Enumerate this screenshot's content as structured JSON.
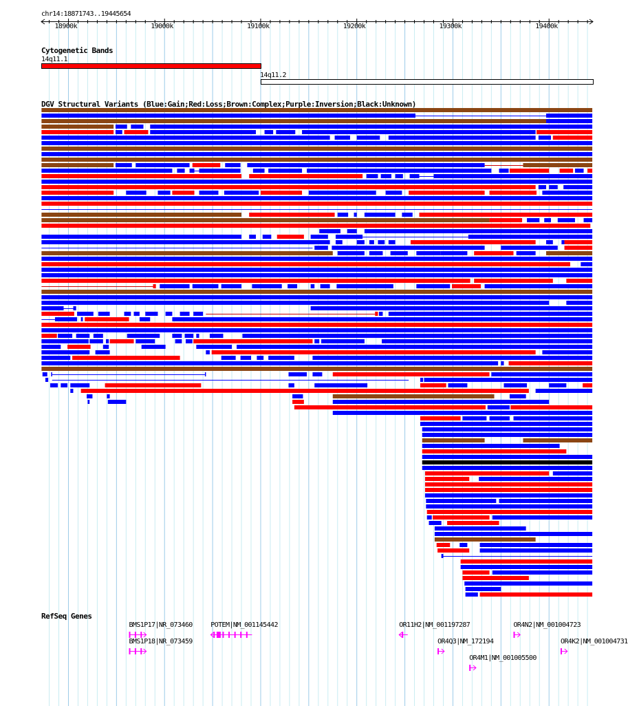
{
  "ruler": {
    "location": "chr14:18871743..19445654",
    "view_start_kb": 18871.743,
    "view_end_kb": 19445.654,
    "ticks_kb": [
      18900,
      19000,
      19100,
      19200,
      19300,
      19400
    ],
    "tick_labels": [
      "18900k",
      "19000k",
      "19100k",
      "19200k",
      "19300k",
      "19400k"
    ]
  },
  "cyto": {
    "title": "Cytogenetic Bands",
    "bands": [
      {
        "name": "14q11.1",
        "start": 18871.743,
        "end": 19100,
        "color": "#ff0000"
      },
      {
        "name": "14q11.2",
        "start": 19100,
        "end": 19445.654,
        "color": "#ffffff"
      }
    ]
  },
  "dgv": {
    "title": "DGV Structural Variants (Blue:Gain;Red:Loss;Brown:Complex;Purple:Inversion;Black:Unknown)",
    "colors": {
      "b": "#0000ff",
      "r": "#ff0000",
      "n": "#8b4513",
      "k": "#000000",
      "l": "#0000ff",
      "lr": "#cc0000"
    },
    "rows": [
      [
        "18872-19445:n"
      ],
      [
        "18872-19261:b",
        "19261-19397:l",
        "19397-19445:b"
      ],
      [
        "18872-19397:n",
        "19397-19445:b"
      ],
      [
        "18872-18947:n",
        "18949-18961:b",
        "18965-18978:b",
        "18985-19445:b"
      ],
      [
        "18872-18947:r",
        "18949-18956:b",
        "18958-18983:r",
        "18985-19095:b",
        "19104-19113:b",
        "19116-19136:b",
        "19143-19386:b",
        "19387-19445:r"
      ],
      [
        "18872-19172:b",
        "19177-19193:b",
        "19200-19224:b",
        "19233-19386:b",
        "19389-19402:b",
        "19404-19445:r"
      ],
      [
        "18872-19445:b"
      ],
      [
        "18872-19445:n"
      ],
      [
        "18872-19445:b"
      ],
      [
        "18872-19445:n"
      ],
      [
        "18872-18947:n",
        "18949-18966:b",
        "18970-19026:b",
        "19029-19058:r",
        "19063-19079:b",
        "19086-19333:b",
        "19333-19373:lr",
        "19373-19445:n"
      ],
      [
        "18872-19008:b",
        "19013-19021:b",
        "19026-19031:b",
        "19031-19036:l",
        "19036-19079:b",
        "19092-19104:b",
        "19108-19143:b",
        "19148-19340:b",
        "19348-19358:b",
        "19359-19400:r",
        "19411-19425:r",
        "19427-19436:b",
        "19440-19445:r"
      ],
      [
        "18872-19080:r",
        "19088-19206:r",
        "19210-19222:b",
        "19225-19236:b",
        "19240-19248:b",
        "19255-19265:b",
        "19265-19280:l",
        "19280-19445:b"
      ],
      [
        "18872-19445:b"
      ],
      [
        "18872-19386:r",
        "19389-19397:b",
        "19400-19409:b",
        "19415-19445:b"
      ],
      [
        "18872-18947:r",
        "18960-18981:b",
        "18993-19006:b",
        "19008-19031:r",
        "19036-19056:b",
        "19062-19098:b",
        "19100-19143:r",
        "19150-19220:b",
        "19230-19247:b",
        "19254-19333:r",
        "19338-19387:r",
        "19393-19445:b"
      ],
      [
        "18872-19445:b"
      ],
      [
        "18872-19445:r"
      ],
      [
        "18872-19445:l"
      ],
      [
        "18872-19080:n",
        "19088-19177:r",
        "19180-19191:b",
        "19197-19200:b",
        "19208-19240:b",
        "19247-19258:b",
        "19265-19445:r"
      ],
      [
        "18872-19338:n",
        "19338-19372:r",
        "19377-19390:b",
        "19395-19402:b",
        "19409-19427:b",
        "19436-19445:b"
      ],
      [
        "18872-19443:r"
      ],
      [
        "19161-19183:b",
        "19190-19200:b",
        "19208-19445:b"
      ],
      [
        "18872-19080:b",
        "19088-19095:b",
        "19102-19111:b",
        "19117-19145:r",
        "19152-19170:b",
        "19178-19206:b",
        "19206-19316:l",
        "19316-19445:b"
      ],
      [
        "18872-19172:b",
        "19178-19185:b",
        "19200-19208:b",
        "19213-19218:b",
        "19222-19229:b",
        "19233-19240:b",
        "19256-19386:r",
        "19397-19404:b",
        "19413-19416:b",
        "19416-19445:r"
      ],
      [
        "18872-19154:l",
        "19156-19170:b",
        "19174-19333:b",
        "19350-19409:b",
        "19416-19445:r"
      ],
      [
        "18872-19175:n",
        "19180-19208:b",
        "19213-19227:b",
        "19235-19253:b",
        "19262-19287:b",
        "19287-19315:b",
        "19322-19363:r",
        "19366-19386:b",
        "19397-19445:n"
      ],
      [
        "18872-19445:b"
      ],
      [
        "18872-19422:r",
        "19433-19445:b"
      ],
      [
        "18872-19445:b"
      ],
      [
        "18872-19445:b"
      ],
      [
        "18872-19318:r",
        "19322-19404:r",
        "19418-19445:r"
      ],
      [
        "18872-18988:lr",
        "18988-18991:r",
        "18995-19026:b",
        "19029-19056:b",
        "19059-19080:b",
        "19091-19122:b",
        "19128-19138:b",
        "19152-19156:b",
        "19162-19172:b",
        "19179-19238:b",
        "19262-19297:b",
        "19299-19329:r",
        "19333-19445:b"
      ],
      [
        "18872-19445:n"
      ],
      [
        "18872-19445:b"
      ],
      [
        "18872-19400:b",
        "19418-19445:b"
      ],
      [
        "18872-18895:b",
        "18895-18905:l",
        "18905-18908:b",
        "19152-19445:b"
      ],
      [
        "18872-18906:r",
        "18909-18926:b",
        "18931-18943:b",
        "18958-18965:b",
        "18968-18974:b",
        "18980-18993:b",
        "19001-19008:b",
        "19016-19026:b",
        "19030-19040:b",
        "19043-19219:lr",
        "19219-19222:r",
        "19223-19227:b",
        "19233-19445:b"
      ],
      [
        "18872-18886:l",
        "18886-18909:b",
        "18913-18915:b",
        "18917-18963:r",
        "18974-18985:b",
        "19008-19445:b"
      ],
      [
        "18872-19445:r"
      ],
      [
        "18872-19445:b"
      ],
      [
        "18872-18888:r",
        "18889-18904:b",
        "18908-18922:b",
        "18926-18936:b",
        "18961-18995:b",
        "19008-19018:b",
        "19021-19030:b",
        "19033-19036:b",
        "19047-19061:b",
        "19081-19445:b"
      ],
      [
        "18872-18921:b",
        "18922-18936:b",
        "18939-18942:b",
        "18943-18968:r",
        "18970-18990:b",
        "19011-19018:b",
        "19022-19029:b",
        "19030-19154:r",
        "19156-19161:b",
        "19163-19208:b",
        "19226-19445:b"
      ],
      [
        "18872-18892:b",
        "18899-18923:r",
        "18936-18942:b",
        "18976-19001:b",
        "19033-19070:b",
        "19075-19445:b"
      ],
      [
        "18872-18922:b",
        "18928-18943:b",
        "19043-19047:b",
        "19049-19386:r",
        "19393-19445:b"
      ],
      [
        "18872-18902:b",
        "18904-19016:r",
        "19059-19074:b",
        "19079-19090:b",
        "19096-19103:b",
        "19108-19135:b",
        "19154-19445:b"
      ],
      [
        "18872-19347:b",
        "19350-19353:b",
        "19358-19445:r"
      ],
      [
        "18872-19445:n"
      ],
      [
        "18873-18878:b",
        "18882-18883:b",
        "18883-19042:l",
        "19042-19043:b",
        "19129-19148:b",
        "19154-19164:b",
        "19175-19338:r",
        "19340-19445:b"
      ],
      [
        "18876-18879:b",
        "18883-19254:l",
        "19266-19269:b",
        "19270-19445:b"
      ],
      [
        "18881-18889:b",
        "18892-18899:b",
        "18902-18922:b",
        "18938-19038:r",
        "19129-19135:b",
        "19156-19211:b",
        "19266-19293:r",
        "19295-19315:b",
        "19353-19377:b",
        "19400-19418:b",
        "19435-19445:r"
      ],
      [
        "18902-18905:b",
        "18913-19379:r",
        "19386-19445:b"
      ],
      [
        "18919-18925:b",
        "18940-18943:b",
        "19133-19144:b",
        "19175-19343:n",
        "19359-19376:b"
      ],
      [
        "18920-18922:b",
        "18941-18960:b",
        "19133-19145:r",
        "19175-19400:b"
      ],
      [
        "19135-19334:r",
        "19336-19359:b",
        "19360-19445:r"
      ],
      [
        "19175-19445:b"
      ],
      [
        "19266-19308:r",
        "19310-19335:b",
        "19338-19359:b",
        "19363-19445:b"
      ],
      [
        "19266-19445:b"
      ],
      [
        "19268-19445:b"
      ],
      [
        "19268-19445:b"
      ],
      [
        "19268-19333:n",
        "19373-19445:n"
      ],
      [
        "19268-19411:b"
      ],
      [
        "19268-19418:r"
      ],
      [
        "19268-19445:b"
      ],
      [
        "19268-19445:k"
      ],
      [
        "19268-19445:b"
      ],
      [
        "19271-19400:r",
        "19404-19445:b"
      ],
      [
        "19271-19317:r",
        "19327-19445:b"
      ],
      [
        "19271-19445:r"
      ],
      [
        "19271-19445:r"
      ],
      [
        "19271-19445:b"
      ],
      [
        "19272-19345:b",
        "19348-19445:b"
      ],
      [
        "19272-19445:b"
      ],
      [
        "19273-19379:r",
        "19374-19445:r"
      ],
      [
        "19273-19278:b",
        "19279-19338:r",
        "19341-19445:b"
      ],
      [
        "19275-19288:b",
        "19294-19348:r"
      ],
      [
        "19281-19376:b"
      ],
      [
        "19281-19445:b"
      ],
      [
        "19281-19386:n"
      ],
      [
        "19283-19297:r",
        "19307-19315:b",
        "19328-19445:b"
      ],
      [
        "19284-19317:r",
        "19328-19445:b"
      ],
      [
        "19288-19445:l",
        "19288-19290:b"
      ],
      [
        "19308-19445:r"
      ],
      [
        "19308-19445:b"
      ],
      [
        "19310-19338:r",
        "19341-19445:b"
      ],
      [
        "19310-19379:r"
      ],
      [
        "19312-19445:b"
      ],
      [
        "19313-19350:b"
      ],
      [
        "19313-19326:b",
        "19328-19445:r"
      ]
    ]
  },
  "refseq": {
    "title": "RefSeq Genes",
    "color": "#ff00ff",
    "genes": [
      {
        "label": "BMS1P17|NR_073460",
        "start": 18963,
        "end": 18981,
        "strand": "+",
        "line": 0
      },
      {
        "label": "BMS1P18|NR_073459",
        "start": 18963,
        "end": 18981,
        "strand": "+",
        "line": 1
      },
      {
        "label": "POTEM|NM_001145442",
        "start": 19048,
        "end": 19091,
        "strand": "-",
        "line": 0
      },
      {
        "label": "OR11H2|NM_001197287",
        "start": 19244,
        "end": 19253,
        "strand": "-",
        "line": 0
      },
      {
        "label": "OR4Q3|NM_172194",
        "start": 19284,
        "end": 19291,
        "strand": "+",
        "line": 1
      },
      {
        "label": "OR4M1|NM_001005500",
        "start": 19317,
        "end": 19324,
        "strand": "+",
        "line": 2
      },
      {
        "label": "OR4N2|NM_001004723",
        "start": 19363,
        "end": 19370,
        "strand": "+",
        "line": 0
      },
      {
        "label": "OR4K2|NM_001004731",
        "start": 19412,
        "end": 19419,
        "strand": "+",
        "line": 1
      }
    ]
  }
}
